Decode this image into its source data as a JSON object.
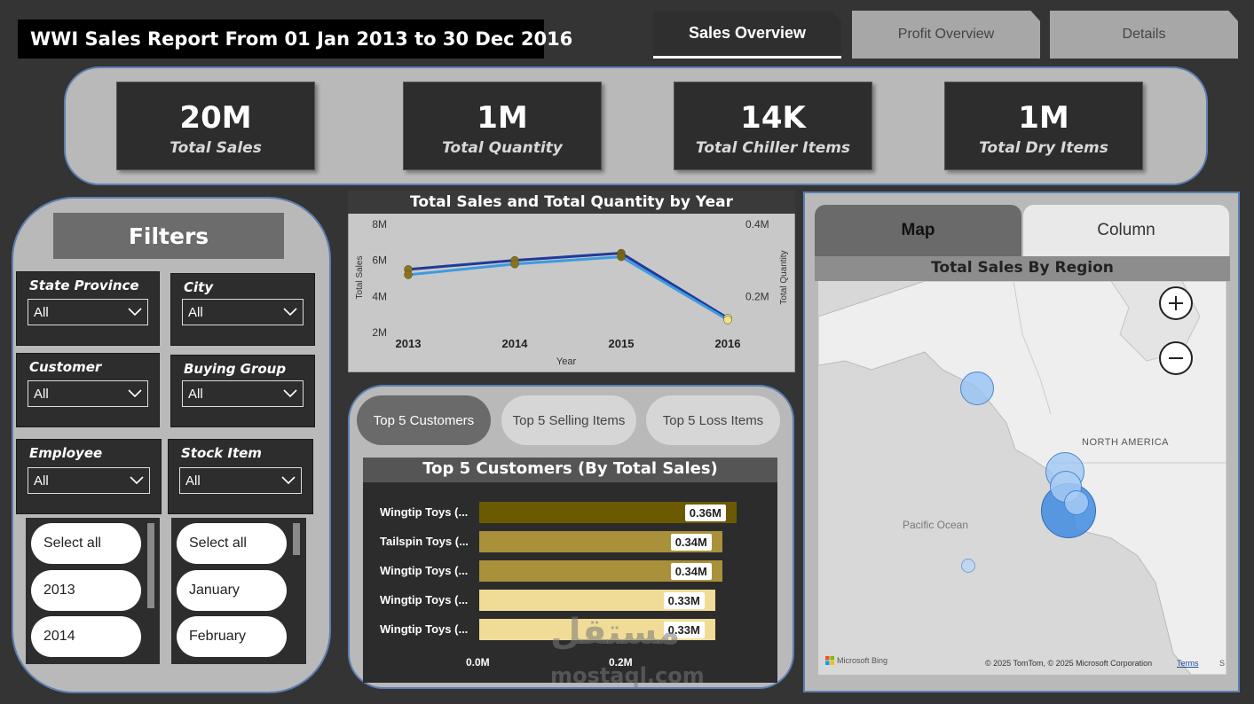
{
  "report_title": "WWI Sales Report From 01 Jan 2013 to 30 Dec 2016",
  "tabs": [
    {
      "label": "Sales Overview",
      "active": true
    },
    {
      "label": "Profit Overview",
      "active": false
    },
    {
      "label": "Details",
      "active": false
    }
  ],
  "kpis": [
    {
      "value": "20M",
      "label": "Total Sales"
    },
    {
      "value": "1M",
      "label": "Total Quantity"
    },
    {
      "value": "14K",
      "label": "Total Chiller Items"
    },
    {
      "value": "1M",
      "label": "Total Dry Items"
    }
  ],
  "filters": {
    "title": "Filters",
    "slicers": [
      {
        "label": "State Province",
        "value": "All"
      },
      {
        "label": "City",
        "value": "All"
      },
      {
        "label": "Customer",
        "value": "All"
      },
      {
        "label": "Buying Group",
        "value": "All"
      },
      {
        "label": "Employee",
        "value": "All"
      },
      {
        "label": "Stock Item",
        "value": "All"
      }
    ],
    "year_list": [
      "Select all",
      "2013",
      "2014"
    ],
    "month_list": [
      "Select all",
      "January",
      "February"
    ]
  },
  "chart_data": [
    {
      "type": "line",
      "title": "Total Sales and Total Quantity by Year",
      "xlabel": "Year",
      "ylabel": "Total Sales",
      "y2label": "Total Quantity",
      "x": [
        "2013",
        "2014",
        "2015",
        "2016"
      ],
      "ylim": [
        2,
        8
      ],
      "y_ticks": [
        "8M",
        "6M",
        "4M",
        "2M"
      ],
      "y2lim": [
        0.1,
        0.4
      ],
      "y2_ticks": [
        "0.4M",
        "0.2M"
      ],
      "grid": false,
      "series": [
        {
          "values": [
            5.5,
            6.0,
            6.4,
            2.8
          ],
          "color": "#1f3a9a",
          "axis": "left"
        },
        {
          "values": [
            0.26,
            0.29,
            0.31,
            0.135
          ],
          "color": "#3d9be0",
          "axis": "right"
        }
      ]
    },
    {
      "type": "bar",
      "orientation": "horizontal",
      "title": "Top 5 Customers (By Total Sales)",
      "categories": [
        "Wingtip Toys (...",
        "Tailspin Toys (...",
        "Wingtip Toys (...",
        "Wingtip Toys (...",
        "Wingtip Toys (..."
      ],
      "values": [
        0.36,
        0.34,
        0.34,
        0.33,
        0.33
      ],
      "value_labels": [
        "0.36M",
        "0.34M",
        "0.34M",
        "0.33M",
        "0.33M"
      ],
      "x_ticks": [
        "0.0M",
        "0.2M"
      ],
      "xlim": [
        0,
        0.4
      ],
      "colors": [
        "#6b5a00",
        "#a8913a",
        "#a8913a",
        "#f0dc96",
        "#f0dc96"
      ]
    }
  ],
  "top_buttons": [
    {
      "label": "Top 5 Customers",
      "active": true
    },
    {
      "label": "Top 5 Selling Items",
      "active": false
    },
    {
      "label": "Top 5 Loss Items",
      "active": false
    }
  ],
  "map": {
    "buttons": [
      {
        "label": "Map",
        "active": true
      },
      {
        "label": "Column",
        "active": false
      }
    ],
    "title": "Total Sales By Region",
    "labels": {
      "continent": "NORTH AMERICA",
      "ocean": "Pacific Ocean"
    },
    "bing_text": "Microsoft Bing",
    "copyright": "© 2025 TomTom, © 2025 Microsoft Corporation",
    "terms": "Terms",
    "edge_letter": "S"
  },
  "watermark": {
    "arabic": "مستقل",
    "latin": "mostaql.com"
  }
}
